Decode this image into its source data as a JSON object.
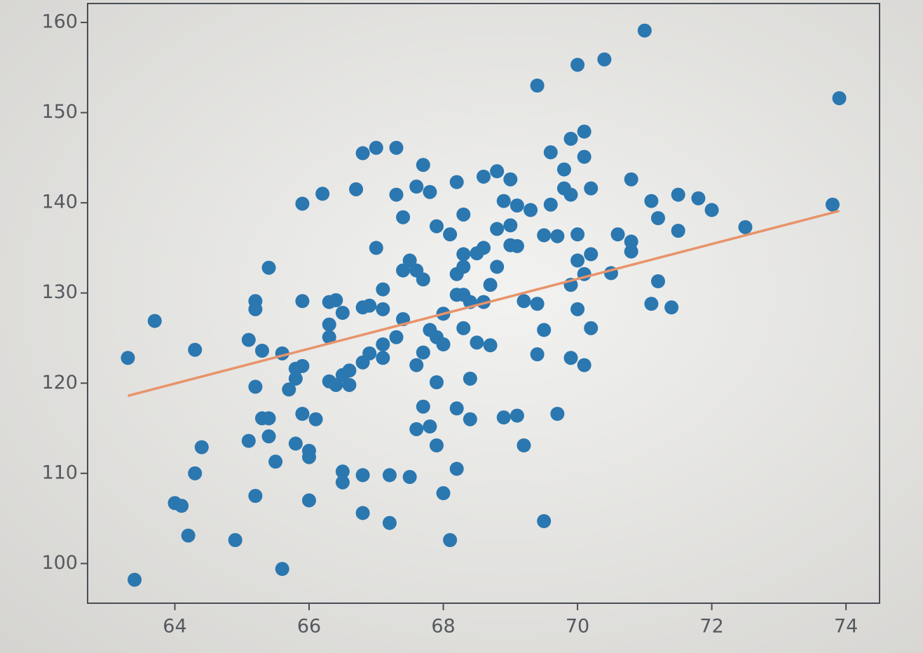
{
  "chart_data": {
    "type": "scatter",
    "xlim": [
      62.7,
      74.5
    ],
    "ylim": [
      95.6,
      162.1
    ],
    "xticks": [
      64,
      66,
      68,
      70,
      72,
      74
    ],
    "yticks": [
      100,
      110,
      120,
      130,
      140,
      150,
      160
    ],
    "series": [
      {
        "color": "#2b77b0",
        "x": [
          63.3,
          63.4,
          63.7,
          64.3,
          64.0,
          64.1,
          64.2,
          64.3,
          64.4,
          64.9,
          65.1,
          65.2,
          65.2,
          65.2,
          65.3,
          65.4,
          65.2,
          65.1,
          65.4,
          65.3,
          65.4,
          65.5,
          65.6,
          65.6,
          65.7,
          65.8,
          65.8,
          65.9,
          65.8,
          66.0,
          66.0,
          65.9,
          66.1,
          66.0,
          65.9,
          65.9,
          66.2,
          66.3,
          66.3,
          66.3,
          66.3,
          66.4,
          66.4,
          66.5,
          66.5,
          66.6,
          66.6,
          66.5,
          66.5,
          66.8,
          66.8,
          66.7,
          66.8,
          67.0,
          66.8,
          66.8,
          66.9,
          66.9,
          67.0,
          67.1,
          67.1,
          67.1,
          67.1,
          67.2,
          67.2,
          67.3,
          67.3,
          67.4,
          67.3,
          67.4,
          67.4,
          67.5,
          67.6,
          67.7,
          67.8,
          67.5,
          67.6,
          67.7,
          67.7,
          67.6,
          67.8,
          67.9,
          67.7,
          67.6,
          67.8,
          67.9,
          68.0,
          67.9,
          68.0,
          68.0,
          68.1,
          67.9,
          68.1,
          68.2,
          68.2,
          68.3,
          68.2,
          68.3,
          68.2,
          68.2,
          68.4,
          68.4,
          68.3,
          68.3,
          68.4,
          68.3,
          68.5,
          68.6,
          68.6,
          68.6,
          68.7,
          68.5,
          68.7,
          68.8,
          68.8,
          69.0,
          68.9,
          68.8,
          69.0,
          69.0,
          69.1,
          68.9,
          69.1,
          69.2,
          69.1,
          69.3,
          69.2,
          69.4,
          69.4,
          69.5,
          69.4,
          69.5,
          69.5,
          69.6,
          69.6,
          69.7,
          69.7,
          69.8,
          69.8,
          69.9,
          69.9,
          70.0,
          70.0,
          69.9,
          70.0,
          70.0,
          69.9,
          70.1,
          70.1,
          70.1,
          70.2,
          70.1,
          70.2,
          70.2,
          70.4,
          70.5,
          70.6,
          70.8,
          70.8,
          70.8,
          71.0,
          71.1,
          71.1,
          71.2,
          71.2,
          71.4,
          71.5,
          71.5,
          71.8,
          72.0,
          72.5,
          73.8,
          73.9
        ],
        "values": [
          122.8,
          98.2,
          126.9,
          123.7,
          106.7,
          106.4,
          103.1,
          110.0,
          112.9,
          102.6,
          124.8,
          129.1,
          128.2,
          119.6,
          123.6,
          132.8,
          107.5,
          113.6,
          114.1,
          116.1,
          116.1,
          111.3,
          99.4,
          123.3,
          119.3,
          120.5,
          121.6,
          121.9,
          113.3,
          112.5,
          111.8,
          116.6,
          116.0,
          107.0,
          129.1,
          139.9,
          141.0,
          129.0,
          126.5,
          125.1,
          120.2,
          119.8,
          129.2,
          127.8,
          120.9,
          119.8,
          121.4,
          110.2,
          109.0,
          109.8,
          105.6,
          141.5,
          145.5,
          146.1,
          128.4,
          122.3,
          123.3,
          128.6,
          135.0,
          130.4,
          124.3,
          122.8,
          128.2,
          109.8,
          104.5,
          146.1,
          140.9,
          138.4,
          125.1,
          127.1,
          132.5,
          109.6,
          141.8,
          144.2,
          141.2,
          133.6,
          132.5,
          131.5,
          123.4,
          122.0,
          125.9,
          125.1,
          117.4,
          114.9,
          115.2,
          113.1,
          107.8,
          120.1,
          127.7,
          124.3,
          102.6,
          137.4,
          136.5,
          142.3,
          132.1,
          132.9,
          129.8,
          138.7,
          110.5,
          117.2,
          116.0,
          120.5,
          126.1,
          129.8,
          129.0,
          134.3,
          134.4,
          142.9,
          135.0,
          129.0,
          130.9,
          124.5,
          124.2,
          132.9,
          143.5,
          142.6,
          140.2,
          137.1,
          137.5,
          135.3,
          135.2,
          116.2,
          116.4,
          113.1,
          139.7,
          139.2,
          129.1,
          128.8,
          153.0,
          136.4,
          123.2,
          125.9,
          104.7,
          139.8,
          145.6,
          136.3,
          116.6,
          141.6,
          143.7,
          147.1,
          140.9,
          136.5,
          155.3,
          130.9,
          133.6,
          128.2,
          122.8,
          122.0,
          147.9,
          145.1,
          141.6,
          132.1,
          134.3,
          126.1,
          155.9,
          132.2,
          136.5,
          135.7,
          134.6,
          142.6,
          159.1,
          140.2,
          128.8,
          138.3,
          131.3,
          128.4,
          140.9,
          136.9,
          140.5,
          139.2,
          137.3,
          139.8,
          151.6
        ]
      }
    ],
    "fit_line": {
      "color": "#e8936a",
      "x": [
        63.3,
        73.9
      ],
      "values": [
        118.6,
        139.1
      ]
    }
  }
}
